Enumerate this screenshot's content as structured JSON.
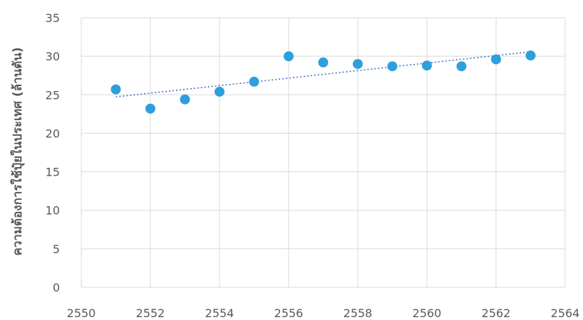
{
  "chart_data": {
    "type": "scatter",
    "title": "",
    "xlabel": "",
    "ylabel": "ความต้องการใช้ปุ๋ยในประเทศ (ล้านตัน)",
    "xlim": [
      2550,
      2564
    ],
    "ylim": [
      0,
      35
    ],
    "x_ticks": [
      2550,
      2552,
      2554,
      2556,
      2558,
      2560,
      2562,
      2564
    ],
    "y_ticks": [
      0,
      5,
      10,
      15,
      20,
      25,
      30,
      35
    ],
    "grid": true,
    "legend": "none",
    "colors": {
      "points": "#2e9fdc",
      "trendline": "#4472c4",
      "grid": "#d9d9d9"
    },
    "series": [
      {
        "x": [
          2551,
          2552,
          2553,
          2554,
          2555,
          2556,
          2557,
          2558,
          2559,
          2560,
          2561,
          2562,
          2563
        ],
        "y": [
          25.7,
          23.2,
          24.4,
          25.4,
          26.7,
          30.0,
          29.2,
          29.0,
          28.7,
          28.8,
          28.7,
          29.6,
          30.1
        ]
      }
    ],
    "trendline": {
      "type": "linear",
      "style": "dotted",
      "x_range": [
        2551,
        2563
      ]
    }
  }
}
